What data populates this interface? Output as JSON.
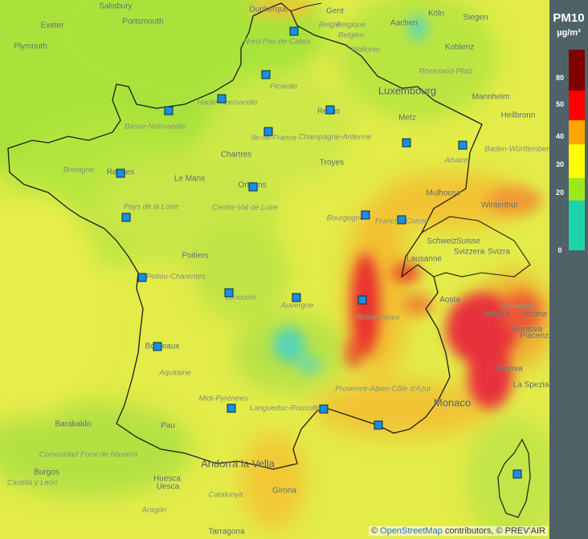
{
  "legend": {
    "title": "PM10",
    "unit": "µg/m³",
    "levels": [
      {
        "tick": "0",
        "color": "#1fd1a8"
      },
      {
        "tick": "20",
        "color": "#9be81f"
      },
      {
        "tick": "30",
        "color": "#ffff00"
      },
      {
        "tick": "40",
        "color": "#ffa500"
      },
      {
        "tick": "50",
        "color": "#ff0000"
      },
      {
        "tick": "80",
        "color": "#800000"
      }
    ]
  },
  "attribution": {
    "symbol": "©",
    "osm_link": "OpenStreetMap",
    "rest": "contributors, © PREV'AIR"
  },
  "places": [
    {
      "name": "Salisbury",
      "type": "city"
    },
    {
      "name": "Exeter",
      "type": "city"
    },
    {
      "name": "Portsmouth",
      "type": "city"
    },
    {
      "name": "Plymouth",
      "type": "city"
    },
    {
      "name": "Dunkerque",
      "type": "city"
    },
    {
      "name": "Gent",
      "type": "city"
    },
    {
      "name": "Köln",
      "type": "city"
    },
    {
      "name": "Siegen",
      "type": "city"
    },
    {
      "name": "België",
      "type": "region"
    },
    {
      "name": "Belgique",
      "type": "region"
    },
    {
      "name": "Belgien",
      "type": "region"
    },
    {
      "name": "Aachen",
      "type": "city"
    },
    {
      "name": "Nord-Pas-de-Calais",
      "type": "region"
    },
    {
      "name": "Wallonie",
      "type": "region"
    },
    {
      "name": "Koblenz",
      "type": "city"
    },
    {
      "name": "Rheinland-Pfalz",
      "type": "region"
    },
    {
      "name": "Luxembourg",
      "type": "big"
    },
    {
      "name": "Picardie",
      "type": "region"
    },
    {
      "name": "Haute-Normandie",
      "type": "region"
    },
    {
      "name": "Basse-Normandie",
      "type": "region"
    },
    {
      "name": "Reims",
      "type": "city"
    },
    {
      "name": "Mannheim",
      "type": "city"
    },
    {
      "name": "Metz",
      "type": "city"
    },
    {
      "name": "Heilbronn",
      "type": "city"
    },
    {
      "name": "Champagne-Ardenne",
      "type": "region"
    },
    {
      "name": "Ile-de-France",
      "type": "region"
    },
    {
      "name": "Chartres",
      "type": "city"
    },
    {
      "name": "Troyes",
      "type": "city"
    },
    {
      "name": "Bretagne",
      "type": "region"
    },
    {
      "name": "Rennes",
      "type": "city"
    },
    {
      "name": "Le Mans",
      "type": "city"
    },
    {
      "name": "Orléans",
      "type": "city"
    },
    {
      "name": "Alsace",
      "type": "region"
    },
    {
      "name": "Baden-Württemberg",
      "type": "region"
    },
    {
      "name": "Centre-Val de Loire",
      "type": "region"
    },
    {
      "name": "Pays de la Loire",
      "type": "region"
    },
    {
      "name": "Bourgogne",
      "type": "region"
    },
    {
      "name": "Franche-Comté",
      "type": "region"
    },
    {
      "name": "Mulhouse",
      "type": "city"
    },
    {
      "name": "Winterthur",
      "type": "city"
    },
    {
      "name": "Poitiers",
      "type": "city"
    },
    {
      "name": "Schweiz",
      "type": "city"
    },
    {
      "name": "Suisse",
      "type": "city"
    },
    {
      "name": "Svizzera",
      "type": "city"
    },
    {
      "name": "Svizra",
      "type": "city"
    },
    {
      "name": "Lausanne",
      "type": "city"
    },
    {
      "name": "Poitou-Charentes",
      "type": "region"
    },
    {
      "name": "Limousin",
      "type": "region"
    },
    {
      "name": "Auvergne",
      "type": "region"
    },
    {
      "name": "Rhône-Alpes",
      "type": "region"
    },
    {
      "name": "Aosta",
      "type": "city"
    },
    {
      "name": "Lombardia",
      "type": "region"
    },
    {
      "name": "Novara",
      "type": "city"
    },
    {
      "name": "Verona",
      "type": "city"
    },
    {
      "name": "Mantova",
      "type": "city"
    },
    {
      "name": "Bordeaux",
      "type": "city"
    },
    {
      "name": "Piacenza",
      "type": "city"
    },
    {
      "name": "Genova",
      "type": "city"
    },
    {
      "name": "Aquitaine",
      "type": "region"
    },
    {
      "name": "Provence-Alpes-Côte d'Azur",
      "type": "region"
    },
    {
      "name": "Midi-Pyrénées",
      "type": "region"
    },
    {
      "name": "Languedoc-Roussillon",
      "type": "region"
    },
    {
      "name": "Monaco",
      "type": "big"
    },
    {
      "name": "La Spezia",
      "type": "city"
    },
    {
      "name": "Barakaldo",
      "type": "city"
    },
    {
      "name": "Pau",
      "type": "city"
    },
    {
      "name": "Comunidad Foral de Navarra",
      "type": "region"
    },
    {
      "name": "Andorra la Vella",
      "type": "big"
    },
    {
      "name": "Burgos",
      "type": "city"
    },
    {
      "name": "Huesca",
      "type": "city"
    },
    {
      "name": "Uesca",
      "type": "city"
    },
    {
      "name": "Girona",
      "type": "city"
    },
    {
      "name": "Aragón",
      "type": "region"
    },
    {
      "name": "Catalunya",
      "type": "region"
    },
    {
      "name": "Tarragona",
      "type": "city"
    },
    {
      "name": "Castilla y León",
      "type": "region"
    }
  ],
  "stations_count_label": ""
}
